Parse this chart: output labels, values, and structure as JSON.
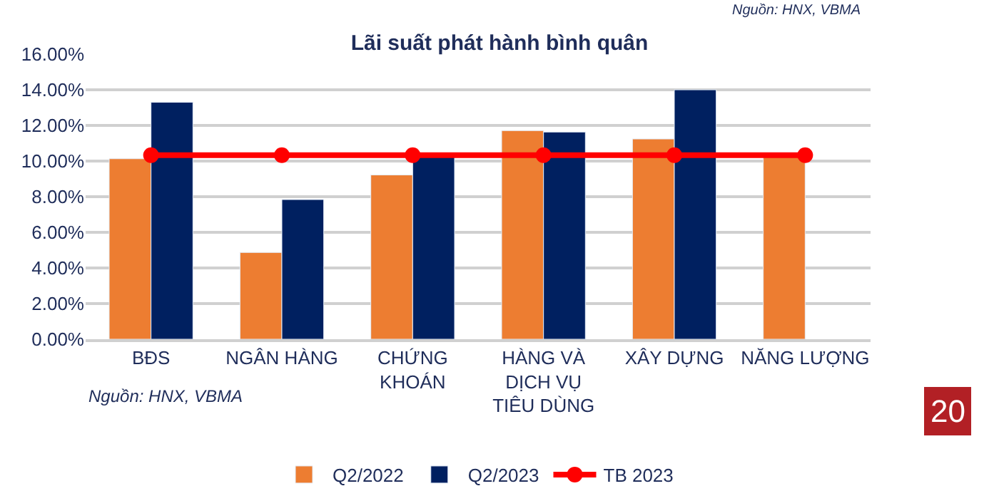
{
  "chart_data": {
    "type": "bar",
    "title": "Lãi suất phát hành bình quân",
    "categories": [
      "BĐS",
      "NGÂN HÀNG",
      "CHỨNG KHOÁN",
      "HÀNG VÀ DỊCH VỤ TIÊU DÙNG",
      "XÂY DỰNG",
      "NĂNG LƯỢNG"
    ],
    "series": [
      {
        "name": "Q2/2022",
        "color": "#ed7d31",
        "values": [
          10.13,
          4.87,
          9.22,
          11.71,
          11.24,
          10.3
        ]
      },
      {
        "name": "Q2/2023",
        "color": "#002060",
        "values": [
          13.3,
          7.84,
          10.22,
          11.63,
          14.0,
          null
        ]
      },
      {
        "name": "TB 2023",
        "type": "line",
        "color": "#ff0000",
        "marker": "circle",
        "values": [
          10.33,
          10.33,
          10.33,
          10.33,
          10.33,
          10.33
        ]
      }
    ],
    "ylim": [
      0,
      16
    ],
    "yticks": [
      {
        "value": 0,
        "label": "0.00%"
      },
      {
        "value": 2,
        "label": "2.00%"
      },
      {
        "value": 4,
        "label": "4.00%"
      },
      {
        "value": 6,
        "label": "6.00%"
      },
      {
        "value": 8,
        "label": "8.00%"
      },
      {
        "value": 10,
        "label": "10.00%"
      },
      {
        "value": 12,
        "label": "12.00%"
      },
      {
        "value": 14,
        "label": "14.00%"
      },
      {
        "value": 16,
        "label": "16.00%"
      }
    ],
    "grid": "y",
    "legend": "bottom",
    "annotations": [
      "Nguồn: HNX, VBMA",
      "Nguồn: HNX, VBMA",
      "20"
    ]
  }
}
